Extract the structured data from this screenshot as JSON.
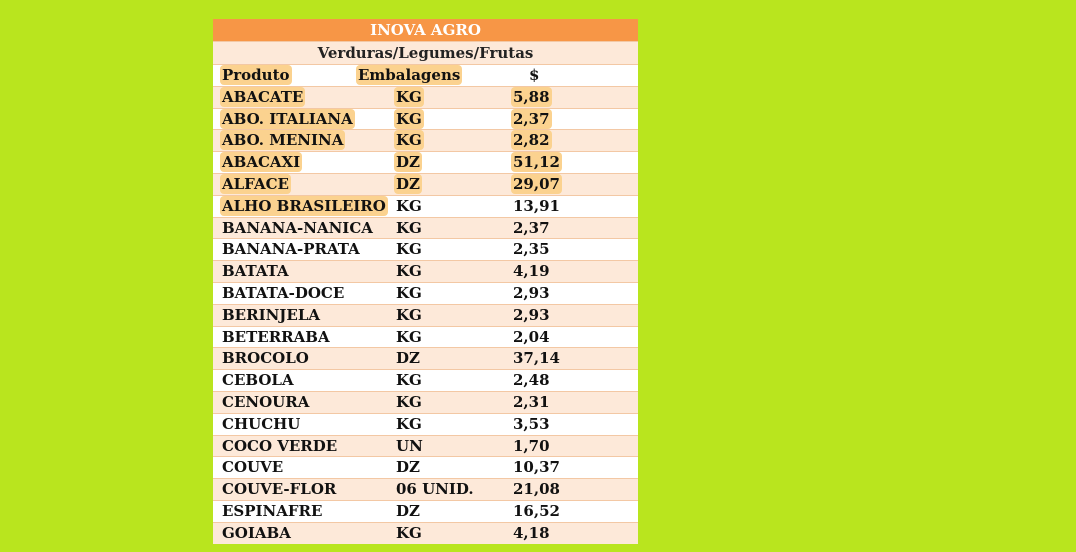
{
  "title": "INOVA AGRO",
  "subtitle": "Verduras/Legumes/Frutas",
  "headers": {
    "product": "Produto",
    "packaging": "Embalagens",
    "price": "$"
  },
  "highlight_color": "#fbd28f",
  "title_color": "#f79646",
  "stripe_color": "#fde9d9",
  "rows": [
    {
      "product": "ABACATE",
      "packaging": "KG",
      "price": "5,88"
    },
    {
      "product": "ABO. ITALIANA",
      "packaging": "KG",
      "price": "2,37"
    },
    {
      "product": "ABO. MENINA",
      "packaging": "KG",
      "price": "2,82"
    },
    {
      "product": "ABACAXI",
      "packaging": "DZ",
      "price": "51,12"
    },
    {
      "product": "ALFACE",
      "packaging": "DZ",
      "price": "29,07"
    },
    {
      "product": "ALHO BRASILEIRO",
      "packaging": "KG",
      "price": "13,91"
    },
    {
      "product": "BANANA-NANICA",
      "packaging": "KG",
      "price": "2,37"
    },
    {
      "product": "BANANA-PRATA",
      "packaging": "KG",
      "price": "2,35"
    },
    {
      "product": "BATATA",
      "packaging": "KG",
      "price": "4,19"
    },
    {
      "product": "BATATA-DOCE",
      "packaging": "KG",
      "price": "2,93"
    },
    {
      "product": "BERINJELA",
      "packaging": "KG",
      "price": "2,93"
    },
    {
      "product": "BETERRABA",
      "packaging": "KG",
      "price": "2,04"
    },
    {
      "product": "BROCOLO",
      "packaging": "DZ",
      "price": "37,14"
    },
    {
      "product": "CEBOLA",
      "packaging": "KG",
      "price": "2,48"
    },
    {
      "product": "CENOURA",
      "packaging": "KG",
      "price": "2,31"
    },
    {
      "product": "CHUCHU",
      "packaging": "KG",
      "price": "3,53"
    },
    {
      "product": "COCO VERDE",
      "packaging": "UN",
      "price": "1,70"
    },
    {
      "product": "COUVE",
      "packaging": "DZ",
      "price": "10,37"
    },
    {
      "product": "COUVE-FLOR",
      "packaging": "06 UNID.",
      "price": "21,08"
    },
    {
      "product": "ESPINAFRE",
      "packaging": "DZ",
      "price": "16,52"
    },
    {
      "product": "GOIABA",
      "packaging": "KG",
      "price": "4,18"
    }
  ]
}
